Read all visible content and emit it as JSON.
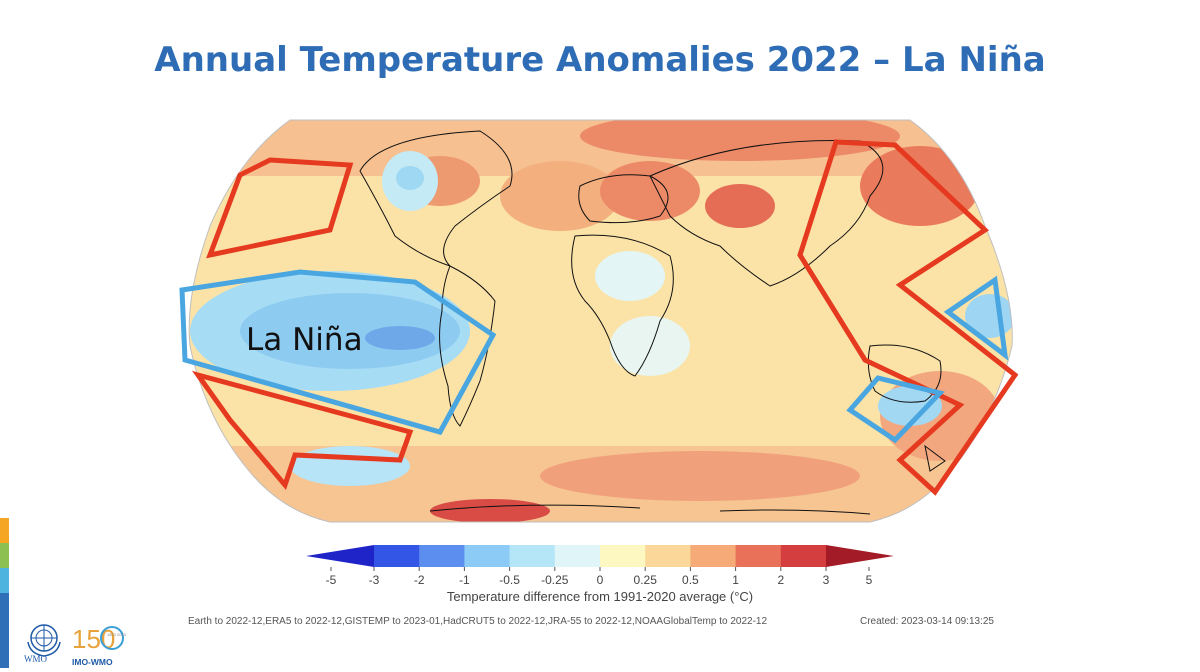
{
  "title": "Annual Temperature Anomalies 2022 – La Niña",
  "annotation_label": "La Niña",
  "colorbar": {
    "ticks": [
      "-5",
      "-3",
      "-2",
      "-1",
      "-0.5",
      "-0.25",
      "0",
      "0.25",
      "0.5",
      "1",
      "2",
      "3",
      "5"
    ],
    "colors": [
      "#1f24c8",
      "#3456e6",
      "#5c8eef",
      "#8ccbf5",
      "#b5e6f8",
      "#e0f5f8",
      "#fdf7c2",
      "#fbd79a",
      "#f5aa78",
      "#ea7159",
      "#d43e3e",
      "#a31b26"
    ],
    "label": "Temperature difference from 1991-2020 average (°C)"
  },
  "sources": "Earth to 2022-12,ERA5 to 2022-12,GISTEMP to 2023-01,HadCRUT5 to 2022-12,JRA-55 to 2022-12,NOAAGlobalTemp to 2022-12",
  "created": "Created: 2023-03-14 09:13:25",
  "colors": {
    "title": "#2e6db5",
    "la_nina_outline": "#4aa6e0",
    "warm_outline": "#e63a20",
    "side_stripes": [
      "#f5a623",
      "#8cc152",
      "#4fb3e0",
      "#2f6fb7",
      "#2f6fb7",
      "#2f6fb7"
    ]
  },
  "branding": {
    "wmo_text": "WMO",
    "anniv_number": "150",
    "anniv_years": "1873 2023",
    "anniv_text": "IMO-WMO"
  }
}
